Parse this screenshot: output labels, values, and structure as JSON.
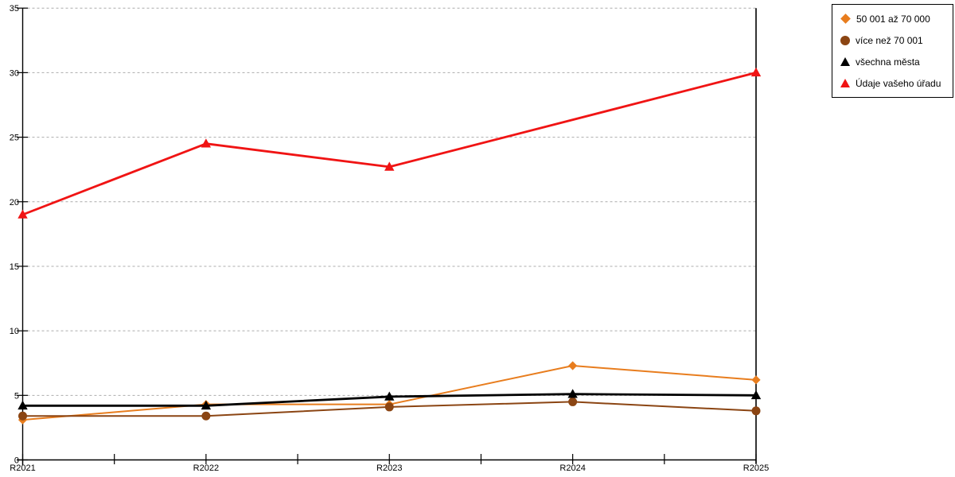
{
  "chart_data": {
    "type": "line",
    "categories": [
      "R2021",
      "R2022",
      "R2023",
      "R2024",
      "R2025"
    ],
    "series": [
      {
        "name": "50 001 až 70 000",
        "color": "#E87D1E",
        "marker": "diamond",
        "values": [
          3.1,
          4.3,
          4.3,
          7.3,
          6.2
        ]
      },
      {
        "name": "více než 70 001",
        "color": "#8B4513",
        "marker": "circle",
        "values": [
          3.4,
          3.4,
          4.1,
          4.5,
          3.8
        ]
      },
      {
        "name": "všechna města",
        "color": "#000000",
        "marker": "triangle",
        "values": [
          4.2,
          4.2,
          4.9,
          5.1,
          5.0
        ]
      },
      {
        "name": "Údaje vašeho úřadu",
        "color": "#F01414",
        "marker": "triangle",
        "values": [
          19.0,
          24.5,
          22.7,
          null,
          30.0
        ]
      }
    ],
    "title": "",
    "xlabel": "",
    "ylabel": "",
    "ylim": [
      0,
      35
    ],
    "ytick_step": 5,
    "ytick_labels": [
      "0",
      "5",
      "10",
      "15",
      "20",
      "25",
      "30",
      "35"
    ],
    "grid": "horizontal-dashed",
    "legend_position": "top-right-outside"
  },
  "colors": {
    "background": "#FFFFFF",
    "axis": "#000000",
    "gridline": "#ACACAC",
    "text": "#000000"
  }
}
